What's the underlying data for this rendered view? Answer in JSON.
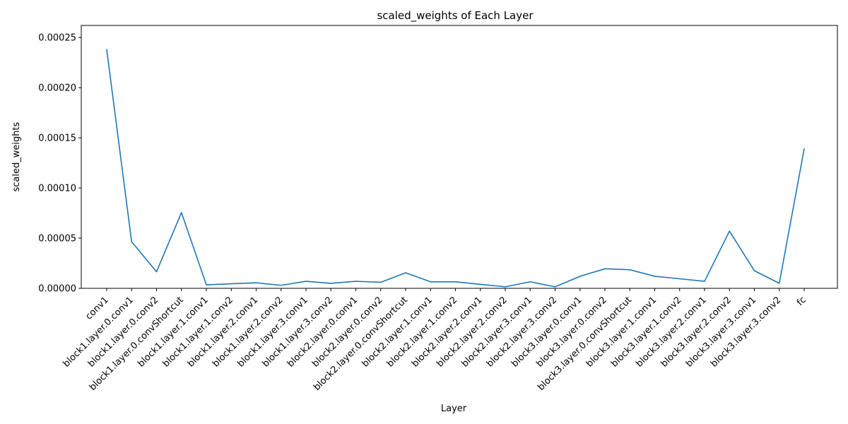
{
  "chart_data": {
    "type": "line",
    "title": "scaled_weights of Each Layer",
    "xlabel": "Layer",
    "ylabel": "scaled_weights",
    "ylim": [
      0,
      0.000262
    ],
    "yticks": [
      "0.00000",
      "0.00005",
      "0.00010",
      "0.00015",
      "0.00020",
      "0.00025"
    ],
    "grid": false,
    "color": "#1f77b4",
    "categories": [
      "conv1",
      "block1.layer.0.conv1",
      "block1.layer.0.conv2",
      "block1.layer.0.convShortcut",
      "block1.layer.1.conv1",
      "block1.layer.1.conv2",
      "block1.layer.2.conv1",
      "block1.layer.2.conv2",
      "block1.layer.3.conv1",
      "block1.layer.3.conv2",
      "block2.layer.0.conv1",
      "block2.layer.0.conv2",
      "block2.layer.0.convShortcut",
      "block2.layer.1.conv1",
      "block2.layer.1.conv2",
      "block2.layer.2.conv1",
      "block2.layer.2.conv2",
      "block2.layer.3.conv1",
      "block2.layer.3.conv2",
      "block3.layer.0.conv1",
      "block3.layer.0.conv2",
      "block3.layer.0.convShortcut",
      "block3.layer.1.conv1",
      "block3.layer.1.conv2",
      "block3.layer.2.conv1",
      "block3.layer.2.conv2",
      "block3.layer.3.conv1",
      "block3.layer.3.conv2",
      "fc"
    ],
    "values": [
      0.000238,
      4.65e-05,
      1.65e-05,
      7.55e-05,
      3.5e-06,
      4.5e-06,
      5.5e-06,
      3e-06,
      7e-06,
      5e-06,
      7e-06,
      6e-06,
      1.55e-05,
      6.5e-06,
      6.5e-06,
      4e-06,
      1.5e-06,
      6.5e-06,
      1.5e-06,
      1.2e-05,
      1.95e-05,
      1.85e-05,
      1.2e-05,
      9.5e-06,
      7e-06,
      5.7e-05,
      1.75e-05,
      5e-06,
      0.000139
    ]
  }
}
